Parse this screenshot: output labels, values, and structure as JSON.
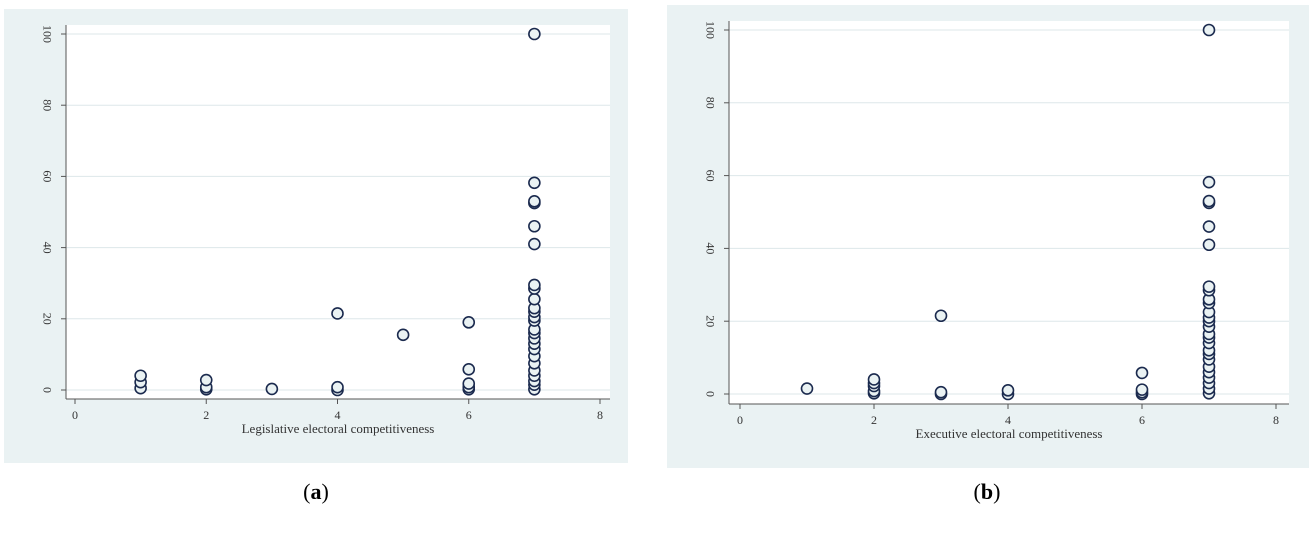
{
  "panels": [
    {
      "id": "a",
      "label_open": "(",
      "label_letter": "a",
      "label_close": ")"
    },
    {
      "id": "b",
      "label_open": "(",
      "label_letter": "b",
      "label_close": ")"
    }
  ],
  "style": {
    "marker_stroke": "#1b2a4e",
    "marker_fill": "#eaf2f3",
    "grid": "#dde7ea",
    "axis": "#555555",
    "panel_bg": "#eaf2f3"
  },
  "chart_data": [
    {
      "type": "scatter",
      "title": "",
      "xlabel": "Legislative electoral competitiveness",
      "ylabel": "",
      "xlim": [
        0,
        8
      ],
      "ylim": [
        0,
        100
      ],
      "xticks": [
        0,
        2,
        4,
        6,
        8
      ],
      "yticks": [
        0,
        20,
        40,
        60,
        80,
        100
      ],
      "grid": true,
      "points": [
        [
          1,
          0.5
        ],
        [
          1,
          2.2
        ],
        [
          1,
          4.0
        ],
        [
          2,
          0.2
        ],
        [
          2,
          0.8
        ],
        [
          2,
          2.8
        ],
        [
          3,
          0.3
        ],
        [
          4,
          0.0
        ],
        [
          4,
          0.8
        ],
        [
          4,
          21.5
        ],
        [
          5,
          15.5
        ],
        [
          6,
          0.2
        ],
        [
          6,
          0.8
        ],
        [
          6,
          1.8
        ],
        [
          6,
          5.8
        ],
        [
          6,
          19.0
        ],
        [
          7,
          0.2
        ],
        [
          7,
          1.5
        ],
        [
          7,
          2.5
        ],
        [
          7,
          4.0
        ],
        [
          7,
          5.5
        ],
        [
          7,
          7.5
        ],
        [
          7,
          9.5
        ],
        [
          7,
          11.5
        ],
        [
          7,
          13.0
        ],
        [
          7,
          14.5
        ],
        [
          7,
          16.0
        ],
        [
          7,
          17.0
        ],
        [
          7,
          19.5
        ],
        [
          7,
          20.5
        ],
        [
          7,
          22.0
        ],
        [
          7,
          23.0
        ],
        [
          7,
          25.5
        ],
        [
          7,
          28.5
        ],
        [
          7,
          29.5
        ],
        [
          7,
          41.0
        ],
        [
          7,
          46.0
        ],
        [
          7,
          52.5
        ],
        [
          7,
          53.0
        ],
        [
          7,
          58.2
        ],
        [
          7,
          100.0
        ]
      ]
    },
    {
      "type": "scatter",
      "title": "",
      "xlabel": "Executive electoral competitiveness",
      "ylabel": "",
      "xlim": [
        0,
        8
      ],
      "ylim": [
        0,
        100
      ],
      "xticks": [
        0,
        2,
        4,
        6,
        8
      ],
      "yticks": [
        0,
        20,
        40,
        60,
        80,
        100
      ],
      "grid": true,
      "points": [
        [
          1,
          1.5
        ],
        [
          2,
          0.2
        ],
        [
          2,
          0.8
        ],
        [
          2,
          2.2
        ],
        [
          2,
          3.0
        ],
        [
          2,
          4.0
        ],
        [
          3,
          0.0
        ],
        [
          3,
          0.5
        ],
        [
          3,
          21.5
        ],
        [
          4,
          0.0
        ],
        [
          4,
          1.0
        ],
        [
          6,
          0.0
        ],
        [
          6,
          0.5
        ],
        [
          6,
          1.2
        ],
        [
          6,
          5.8
        ],
        [
          7,
          0.2
        ],
        [
          7,
          1.5
        ],
        [
          7,
          3.0
        ],
        [
          7,
          4.5
        ],
        [
          7,
          6.0
        ],
        [
          7,
          7.5
        ],
        [
          7,
          9.5
        ],
        [
          7,
          11.0
        ],
        [
          7,
          12.0
        ],
        [
          7,
          14.0
        ],
        [
          7,
          15.5
        ],
        [
          7,
          16.5
        ],
        [
          7,
          18.5
        ],
        [
          7,
          20.0
        ],
        [
          7,
          21.0
        ],
        [
          7,
          22.5
        ],
        [
          7,
          25.0
        ],
        [
          7,
          26.0
        ],
        [
          7,
          28.5
        ],
        [
          7,
          29.5
        ],
        [
          7,
          41.0
        ],
        [
          7,
          46.0
        ],
        [
          7,
          52.5
        ],
        [
          7,
          53.0
        ],
        [
          7,
          58.2
        ],
        [
          7,
          100.0
        ]
      ]
    }
  ]
}
